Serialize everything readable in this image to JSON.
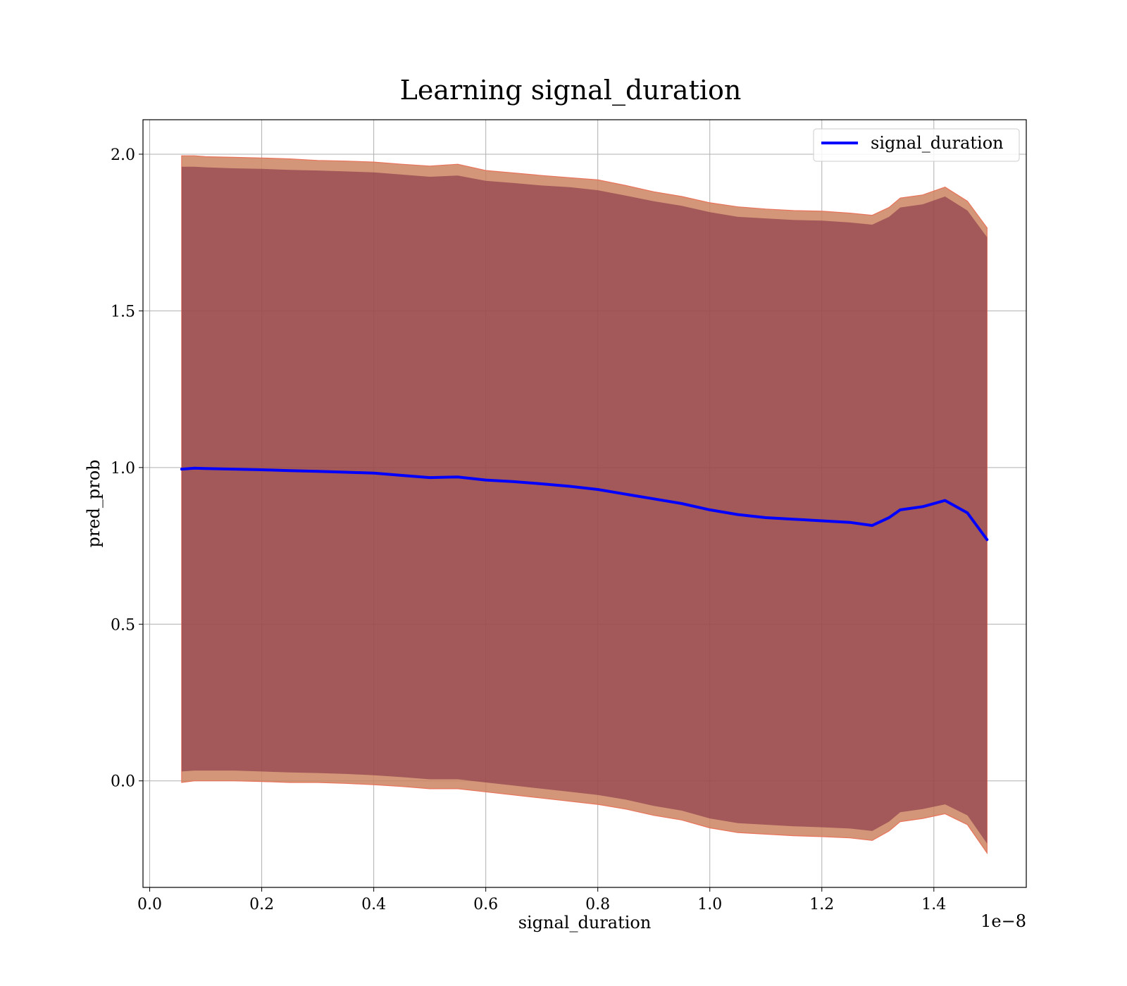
{
  "chart_data": {
    "type": "line",
    "title": "Learning signal_duration",
    "xlabel": "signal_duration",
    "ylabel": "pred_prob",
    "x_offset_label": "1e−8",
    "xlim": [
      -0.012,
      1.565
    ],
    "ylim": [
      -0.34,
      2.11
    ],
    "x_ticks": [
      0.0,
      0.2,
      0.4,
      0.6,
      0.8,
      1.0,
      1.2,
      1.4
    ],
    "x_tick_labels": [
      "0.0",
      "0.2",
      "0.4",
      "0.6",
      "0.8",
      "1.0",
      "1.2",
      "1.4"
    ],
    "y_ticks": [
      0.0,
      0.5,
      1.0,
      1.5,
      2.0
    ],
    "y_tick_labels": [
      "0.0",
      "0.5",
      "1.0",
      "1.5",
      "2.0"
    ],
    "grid": true,
    "legend_position": "top-right",
    "x": [
      0.057,
      0.08,
      0.1,
      0.15,
      0.2,
      0.25,
      0.3,
      0.35,
      0.4,
      0.45,
      0.5,
      0.55,
      0.6,
      0.65,
      0.7,
      0.75,
      0.8,
      0.85,
      0.9,
      0.95,
      1.0,
      1.05,
      1.1,
      1.15,
      1.2,
      1.25,
      1.29,
      1.32,
      1.34,
      1.38,
      1.42,
      1.46,
      1.495
    ],
    "series": [
      {
        "name": "signal_duration",
        "color": "#0000ff",
        "values": [
          0.995,
          0.998,
          0.997,
          0.995,
          0.993,
          0.99,
          0.988,
          0.985,
          0.982,
          0.975,
          0.968,
          0.97,
          0.96,
          0.955,
          0.948,
          0.94,
          0.93,
          0.915,
          0.9,
          0.885,
          0.865,
          0.85,
          0.84,
          0.835,
          0.83,
          0.825,
          0.815,
          0.84,
          0.865,
          0.875,
          0.895,
          0.855,
          0.77
        ]
      }
    ],
    "bands": [
      {
        "color": "#cd8462",
        "upper": [
          1.995,
          1.995,
          1.992,
          1.99,
          1.988,
          1.985,
          1.98,
          1.978,
          1.975,
          1.968,
          1.962,
          1.968,
          1.948,
          1.94,
          1.932,
          1.925,
          1.918,
          1.9,
          1.88,
          1.865,
          1.845,
          1.832,
          1.825,
          1.82,
          1.818,
          1.812,
          1.805,
          1.83,
          1.86,
          1.87,
          1.895,
          1.85,
          1.765
        ],
        "lower": [
          -0.005,
          0.0,
          0.0,
          0.0,
          -0.002,
          -0.005,
          -0.005,
          -0.008,
          -0.012,
          -0.018,
          -0.025,
          -0.025,
          -0.035,
          -0.045,
          -0.055,
          -0.065,
          -0.075,
          -0.09,
          -0.11,
          -0.125,
          -0.15,
          -0.165,
          -0.17,
          -0.175,
          -0.178,
          -0.182,
          -0.19,
          -0.16,
          -0.13,
          -0.12,
          -0.105,
          -0.14,
          -0.23
        ]
      },
      {
        "color": "#7a2740",
        "upper": [
          1.96,
          1.96,
          1.958,
          1.955,
          1.953,
          1.95,
          1.948,
          1.945,
          1.942,
          1.935,
          1.928,
          1.932,
          1.915,
          1.908,
          1.9,
          1.895,
          1.885,
          1.868,
          1.85,
          1.835,
          1.815,
          1.8,
          1.795,
          1.79,
          1.788,
          1.782,
          1.775,
          1.8,
          1.83,
          1.84,
          1.865,
          1.82,
          1.735
        ],
        "lower": [
          0.03,
          0.033,
          0.033,
          0.033,
          0.03,
          0.027,
          0.025,
          0.022,
          0.018,
          0.012,
          0.005,
          0.005,
          -0.005,
          -0.015,
          -0.025,
          -0.035,
          -0.045,
          -0.06,
          -0.08,
          -0.095,
          -0.12,
          -0.135,
          -0.14,
          -0.145,
          -0.148,
          -0.152,
          -0.16,
          -0.13,
          -0.1,
          -0.09,
          -0.075,
          -0.11,
          -0.2
        ]
      }
    ]
  }
}
